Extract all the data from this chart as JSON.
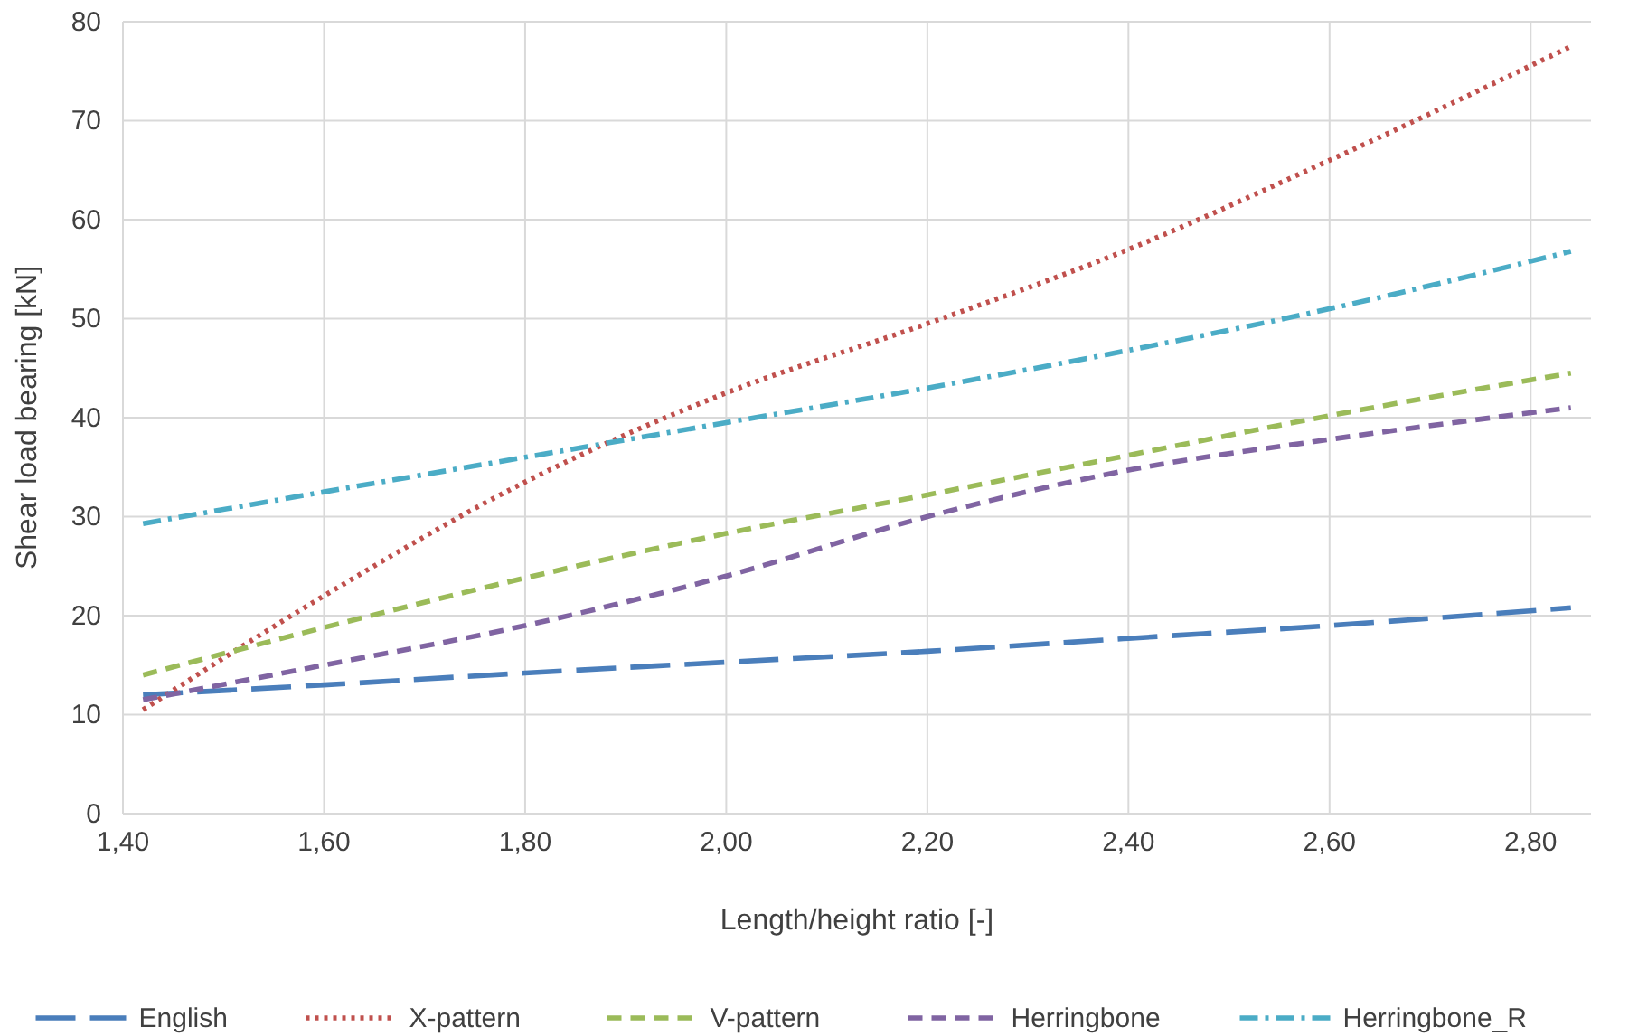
{
  "chart_data": {
    "type": "line",
    "xlabel": "Length/height ratio [-]",
    "ylabel": "Shear load bearing [kN]",
    "xlim": [
      1.4,
      2.86
    ],
    "ylim": [
      0,
      80
    ],
    "xticks": [
      {
        "value": 1.4,
        "label": "1,40"
      },
      {
        "value": 1.6,
        "label": "1,60"
      },
      {
        "value": 1.8,
        "label": "1,80"
      },
      {
        "value": 2.0,
        "label": "2,00"
      },
      {
        "value": 2.2,
        "label": "2,20"
      },
      {
        "value": 2.4,
        "label": "2,40"
      },
      {
        "value": 2.6,
        "label": "2,60"
      },
      {
        "value": 2.8,
        "label": "2,80"
      }
    ],
    "yticks": [
      0,
      10,
      20,
      30,
      40,
      50,
      60,
      70,
      80
    ],
    "grid": true,
    "legend": "bottom",
    "marker": "none",
    "x": [
      1.42,
      1.6,
      1.8,
      2.0,
      2.2,
      2.4,
      2.6,
      2.84
    ],
    "series": [
      {
        "name": "English",
        "color": "#4a7ebb",
        "line_style": "dashed",
        "values": [
          12,
          13,
          14.2,
          15.3,
          16.4,
          17.7,
          19,
          20.8
        ]
      },
      {
        "name": "X-pattern",
        "color": "#c0504d",
        "line_style": "dotted",
        "values": [
          10.5,
          22,
          33.5,
          42.5,
          49.5,
          57,
          66,
          77.5
        ]
      },
      {
        "name": "V-pattern",
        "color": "#9bbb59",
        "line_style": "dashed",
        "values": [
          14,
          18.8,
          23.8,
          28.3,
          32.2,
          36.2,
          40.2,
          44.5
        ]
      },
      {
        "name": "Herringbone",
        "color": "#8064a2",
        "line_style": "dashed",
        "values": [
          11.5,
          15,
          19,
          24,
          30,
          34.7,
          37.8,
          41
        ]
      },
      {
        "name": "Herringbone_R",
        "color": "#4bacc6",
        "line_style": "dashdot",
        "values": [
          29.3,
          32.5,
          36,
          39.5,
          43,
          46.8,
          51,
          56.8
        ]
      }
    ]
  }
}
